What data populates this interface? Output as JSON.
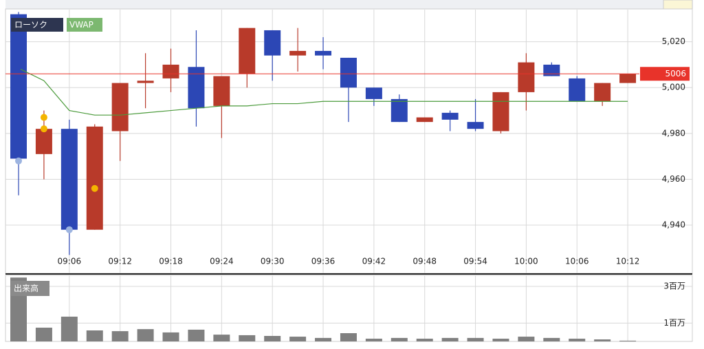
{
  "chart_data": [
    {
      "type": "candlestick",
      "categories": [
        null,
        null,
        "09:06",
        null,
        "09:12",
        null,
        "09:18",
        null,
        "09:24",
        null,
        "09:30",
        null,
        "09:36",
        null,
        "09:42",
        null,
        "09:48",
        null,
        "09:54",
        null,
        "10:00",
        null,
        "10:06",
        null,
        "10:12"
      ],
      "ylim": [
        4919,
        5034
      ],
      "yticks": [
        {
          "value": 4940,
          "label": "4,940"
        },
        {
          "value": 4960,
          "label": "4,960"
        },
        {
          "value": 4980,
          "label": "4,980"
        },
        {
          "value": 5000,
          "label": "5,000"
        },
        {
          "value": 5020,
          "label": "5,020"
        }
      ],
      "grid": true,
      "series": [
        {
          "name": "ローソク",
          "up_color": "#b83a2a",
          "down_color": "#2c47b5",
          "open": [
            5032,
            4971,
            4982,
            4938,
            4981,
            5002,
            5004,
            5009,
            4992,
            5006,
            5025,
            5014,
            5016,
            5013,
            5000,
            4995,
            4985,
            4989,
            4985,
            4981,
            4998,
            5010,
            5004,
            4994,
            5002
          ],
          "high": [
            5033,
            4990,
            4986,
            4984,
            5002,
            5015,
            5017,
            5025,
            5005,
            5026,
            5025,
            5026,
            5022,
            5013,
            5000,
            4997,
            4987,
            4990,
            4995,
            4998,
            5015,
            5011,
            5005,
            5002,
            5006
          ],
          "low": [
            4953,
            4960,
            4927,
            4938,
            4968,
            4991,
            4998,
            4983,
            4978,
            5000,
            5003,
            5007,
            5008,
            4985,
            4992,
            4985,
            4985,
            4981,
            4981,
            4980,
            4990,
            5005,
            4994,
            4992,
            5002
          ],
          "close": [
            4969,
            4982,
            4938,
            4983,
            5002,
            5003,
            5010,
            4991,
            5005,
            5026,
            5014,
            5016,
            5014,
            5000,
            4995,
            4985,
            4987,
            4986,
            4982,
            4998,
            5011,
            5005,
            4994,
            5002,
            5006
          ]
        },
        {
          "name": "VWAP",
          "color": "#4a9a3a",
          "label_color": "#7cb870",
          "values": [
            5008,
            5003,
            4990,
            4988,
            4988,
            4989,
            4990,
            4991,
            4992,
            4992,
            4993,
            4993,
            4994,
            4994,
            4994,
            4994,
            4994,
            4994,
            4994,
            4994,
            4994,
            4994,
            4994,
            4994,
            4994
          ]
        }
      ],
      "markers": [
        {
          "index": 0,
          "value": 4968,
          "color": "#9db4e0"
        },
        {
          "index": 1,
          "value": 4987,
          "color": "#f4b400"
        },
        {
          "index": 1,
          "value": 4982,
          "color": "#f4b400"
        },
        {
          "index": 2,
          "value": 4938,
          "color": "#9db4e0"
        },
        {
          "index": 3,
          "value": 4956,
          "color": "#f4b400"
        }
      ],
      "last_price": 5006,
      "last_price_color": "#e8332a"
    },
    {
      "type": "bar",
      "ylim": [
        0,
        3.6
      ],
      "yticks": [
        {
          "value": 1,
          "label": "1百万"
        },
        {
          "value": 3,
          "label": "3百万"
        }
      ],
      "grid": true,
      "series": [
        {
          "name": "出来高",
          "color": "#808080",
          "values": [
            3.48,
            0.75,
            1.35,
            0.6,
            0.56,
            0.67,
            0.49,
            0.64,
            0.37,
            0.34,
            0.3,
            0.26,
            0.19,
            0.45,
            0.15,
            0.19,
            0.15,
            0.19,
            0.19,
            0.15,
            0.26,
            0.19,
            0.15,
            0.11,
            0.04
          ]
        }
      ]
    }
  ]
}
